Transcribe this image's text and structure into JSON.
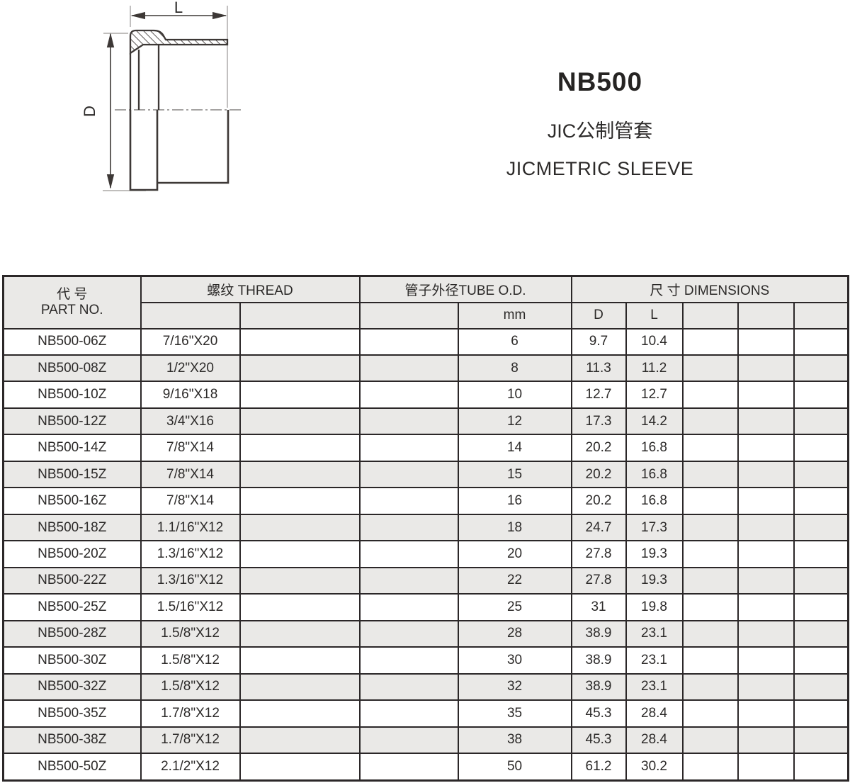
{
  "product": {
    "model": "NB500",
    "subtitle_cn": "JIC公制管套",
    "subtitle_en": "JICMETRIC SLEEVE"
  },
  "drawing": {
    "dim_length_label": "L",
    "dim_diameter_label": "D"
  },
  "colors": {
    "table_border": "#2b2728",
    "shaded_row": "#eae9e7",
    "line": "#3d3836"
  },
  "table": {
    "header": {
      "part_no_cn": "代 号",
      "part_no_en": "PART NO.",
      "thread": "螺纹 THREAD",
      "tube_od": "管子外径TUBE O.D.",
      "dimensions": "尺 寸  DIMENSIONS",
      "unit_mm": "mm",
      "dim_d": "D",
      "dim_l": "L"
    },
    "rows": [
      {
        "part_no": "NB500-06Z",
        "thread": "7/16\"X20",
        "tube_od_mm": "6",
        "d": "9.7",
        "l": "10.4"
      },
      {
        "part_no": "NB500-08Z",
        "thread": "1/2\"X20",
        "tube_od_mm": "8",
        "d": "11.3",
        "l": "11.2"
      },
      {
        "part_no": "NB500-10Z",
        "thread": "9/16\"X18",
        "tube_od_mm": "10",
        "d": "12.7",
        "l": "12.7"
      },
      {
        "part_no": "NB500-12Z",
        "thread": "3/4\"X16",
        "tube_od_mm": "12",
        "d": "17.3",
        "l": "14.2"
      },
      {
        "part_no": "NB500-14Z",
        "thread": "7/8\"X14",
        "tube_od_mm": "14",
        "d": "20.2",
        "l": "16.8"
      },
      {
        "part_no": "NB500-15Z",
        "thread": "7/8\"X14",
        "tube_od_mm": "15",
        "d": "20.2",
        "l": "16.8"
      },
      {
        "part_no": "NB500-16Z",
        "thread": "7/8\"X14",
        "tube_od_mm": "16",
        "d": "20.2",
        "l": "16.8"
      },
      {
        "part_no": "NB500-18Z",
        "thread": "1.1/16\"X12",
        "tube_od_mm": "18",
        "d": "24.7",
        "l": "17.3"
      },
      {
        "part_no": "NB500-20Z",
        "thread": "1.3/16\"X12",
        "tube_od_mm": "20",
        "d": "27.8",
        "l": "19.3"
      },
      {
        "part_no": "NB500-22Z",
        "thread": "1.3/16\"X12",
        "tube_od_mm": "22",
        "d": "27.8",
        "l": "19.3"
      },
      {
        "part_no": "NB500-25Z",
        "thread": "1.5/16\"X12",
        "tube_od_mm": "25",
        "d": "31",
        "l": "19.8"
      },
      {
        "part_no": "NB500-28Z",
        "thread": "1.5/8\"X12",
        "tube_od_mm": "28",
        "d": "38.9",
        "l": "23.1"
      },
      {
        "part_no": "NB500-30Z",
        "thread": "1.5/8\"X12",
        "tube_od_mm": "30",
        "d": "38.9",
        "l": "23.1"
      },
      {
        "part_no": "NB500-32Z",
        "thread": "1.5/8\"X12",
        "tube_od_mm": "32",
        "d": "38.9",
        "l": "23.1"
      },
      {
        "part_no": "NB500-35Z",
        "thread": "1.7/8\"X12",
        "tube_od_mm": "35",
        "d": "45.3",
        "l": "28.4"
      },
      {
        "part_no": "NB500-38Z",
        "thread": "1.7/8\"X12",
        "tube_od_mm": "38",
        "d": "45.3",
        "l": "28.4"
      },
      {
        "part_no": "NB500-50Z",
        "thread": "2.1/2\"X12",
        "tube_od_mm": "50",
        "d": "61.2",
        "l": "30.2"
      }
    ]
  }
}
